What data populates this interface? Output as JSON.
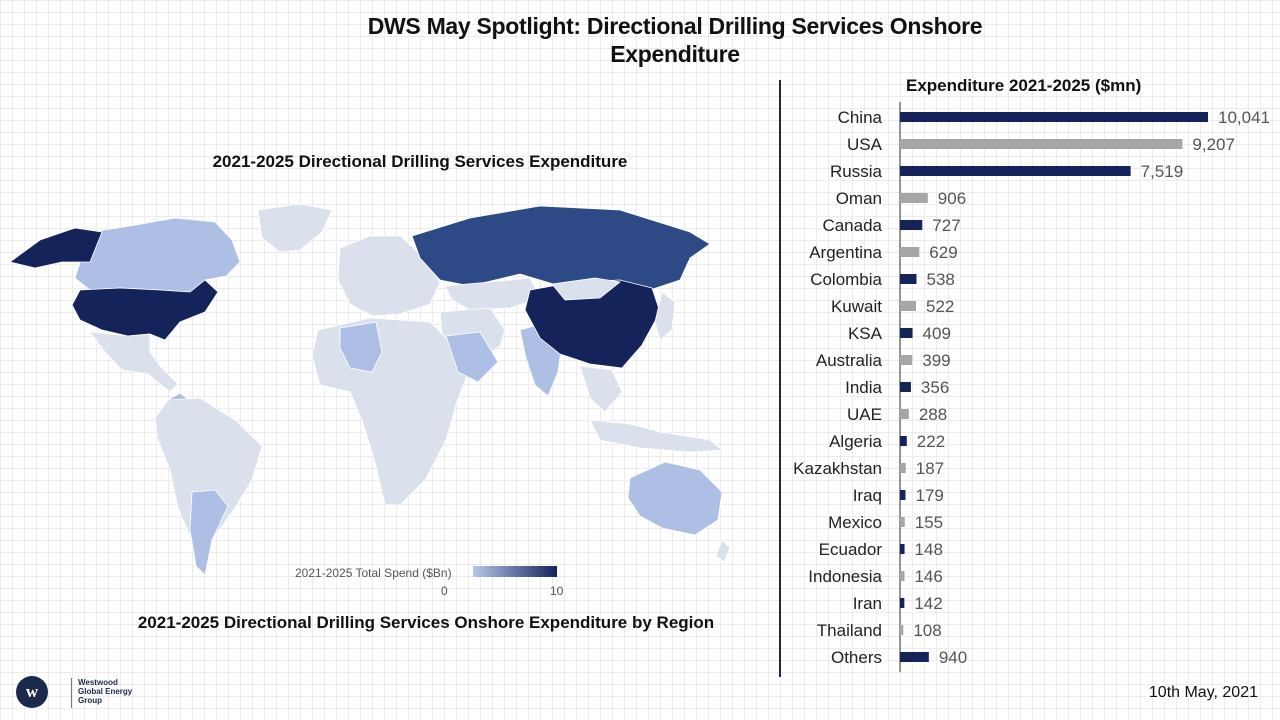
{
  "title": "DWS May Spotlight: Directional Drilling Services Onshore Expenditure",
  "map": {
    "title": "2021-2025 Directional Drilling Services Expenditure",
    "legend_label": "2021-2025 Total Spend ($Bn)",
    "legend_min": "0",
    "legend_max": "10",
    "caption": "2021-2025 Directional Drilling Services Onshore Expenditure by Region",
    "colors": {
      "low": "#dbe1ec",
      "light": "#aebfe6",
      "mid": "#2e4a86",
      "high": "#14245a"
    }
  },
  "chart_data": {
    "type": "bar",
    "orientation": "horizontal",
    "title": "Expenditure 2021-2025 ($mn)",
    "categories": [
      "China",
      "USA",
      "Russia",
      "Oman",
      "Canada",
      "Argentina",
      "Colombia",
      "Kuwait",
      "KSA",
      "Australia",
      "India",
      "UAE",
      "Algeria",
      "Kazakhstan",
      "Iraq",
      "Mexico",
      "Ecuador",
      "Indonesia",
      "Iran",
      "Thailand",
      "Others"
    ],
    "values": [
      10041,
      9207,
      7519,
      906,
      727,
      629,
      538,
      522,
      409,
      399,
      356,
      288,
      222,
      187,
      179,
      155,
      148,
      146,
      142,
      108,
      940
    ],
    "value_labels": [
      "10,041",
      "9,207",
      "7,519",
      "906",
      "727",
      "629",
      "538",
      "522",
      "409",
      "399",
      "356",
      "288",
      "222",
      "187",
      "179",
      "155",
      "148",
      "146",
      "142",
      "108",
      "940"
    ],
    "bar_colors": [
      "#14245a",
      "#a6a6a6"
    ],
    "xlim": [
      0,
      10041
    ]
  },
  "footer": {
    "logo_text": "Westwood Global Energy Group",
    "logo_letter": "w",
    "date": "10th May, 2021"
  }
}
